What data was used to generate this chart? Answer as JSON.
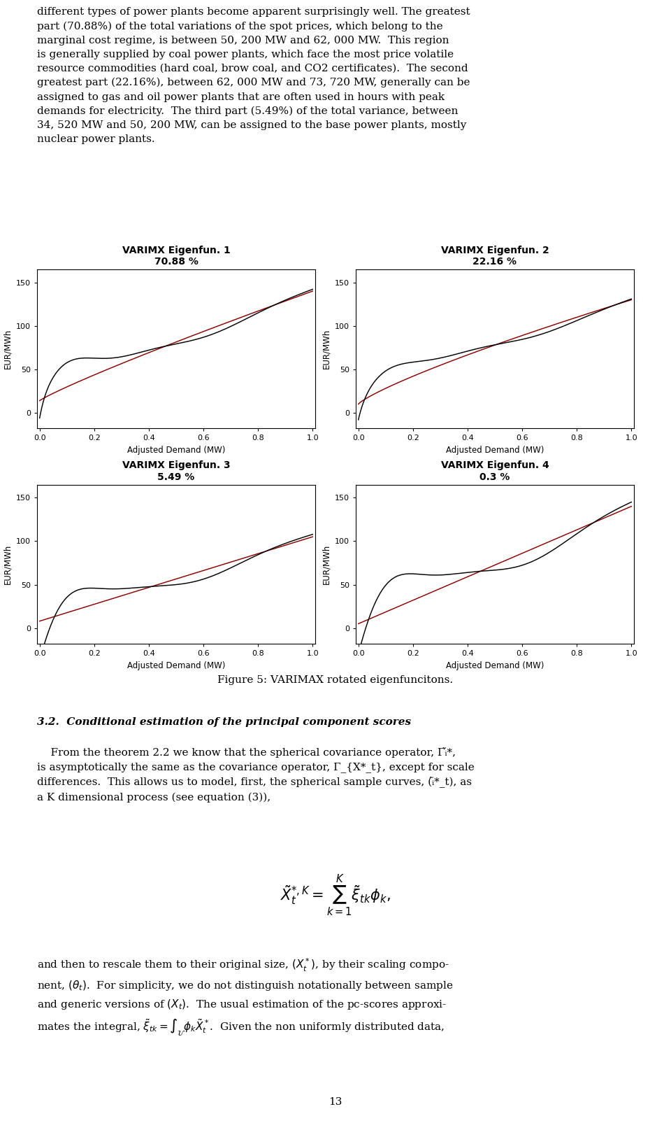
{
  "subplots": [
    {
      "title": "VARIMX Eigenfun. 1",
      "subtitle": "70.88 %"
    },
    {
      "title": "VARIMX Eigenfun. 2",
      "subtitle": "22.16 %"
    },
    {
      "title": "VARIMX Eigenfun. 3",
      "subtitle": "5.49 %"
    },
    {
      "title": "VARIMX Eigenfun. 4",
      "subtitle": "0.3 %"
    }
  ],
  "xlabel": "Adjusted Demand (MW)",
  "ylabel": "EUR/MWh",
  "figure_caption": "Figure 5: VARIMAX rotated eigenfuncitons.",
  "black_color": "#000000",
  "red_color": "#8B0000",
  "bg_color": "#ffffff",
  "top_text": "different types of power plants become apparent surprisingly well. The greatest\npart (70.88%) of the total variations of the spot prices, which belong to the\nmarginal cost regime, is between 50, 200 MW and 62, 000 MW.  This region\nis generally supplied by coal power plants, which face the most price volatile\nresource commodities (hard coal, brow coal, and CO2 certificates).  The second\ngreatest part (22.16%), between 62, 000 MW and 73, 720 MW, generally can be\nassigned to gas and oil power plants that are often used in hours with peak\ndemands for electricity.  The third part (5.49%) of the total variance, between\n34, 520 MW and 50, 200 MW, can be assigned to the base power plants, mostly\nnuclear power plants.",
  "section_header": "3.2.  Conditional estimation of the principal component scores",
  "bottom_text_1": "    From the theorem 2.2 we know that the spherical covariance operator,",
  "bottom_text_2": "is asymptotically the same as the covariance operator,",
  "bottom_text_3": "differences.  This allows us to model, first, the spherical sample curves,",
  "bottom_text_4": "a K dimensional process (see equation (3)),",
  "bottom_text_para2": "and then to rescale them to their original size,",
  "page_number": "13",
  "title_fontsize": 10,
  "label_fontsize": 8.5,
  "tick_fontsize": 8,
  "text_fontsize": 11
}
